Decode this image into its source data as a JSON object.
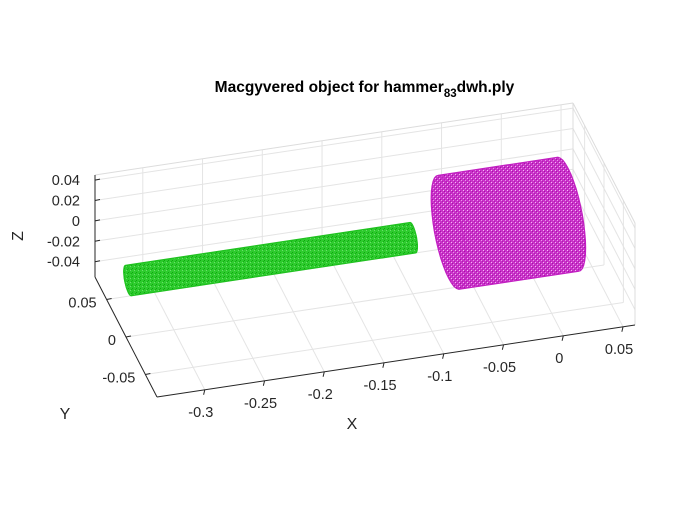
{
  "chart_data": {
    "type": "scatter3d",
    "title": {
      "prefix": "Macgyvered object for hammer",
      "subscript": "83",
      "suffix": "dwh.ply"
    },
    "xlabel": "X",
    "ylabel": "Y",
    "zlabel": "Z",
    "x_ticks": [
      "-0.3",
      "-0.25",
      "-0.2",
      "-0.15",
      "-0.1",
      "-0.05",
      "0",
      "0.05"
    ],
    "y_ticks": [
      "-0.05",
      "0",
      "0.05"
    ],
    "z_ticks": [
      "-0.04",
      "-0.02",
      "0",
      "0.02",
      "0.04"
    ],
    "xlim": [
      -0.34,
      0.06
    ],
    "ylim": [
      -0.08,
      0.08
    ],
    "zlim": [
      -0.055,
      0.045
    ],
    "grid": true,
    "series": [
      {
        "part": "handle",
        "shape": "cylinder",
        "color": "#1fc21f",
        "x_range": [
          -0.338,
          -0.1
        ],
        "radius": 0.012
      },
      {
        "part": "head",
        "shape": "cylinder",
        "color": "#c21fc2",
        "x_range": [
          -0.07,
          0.03
        ],
        "radius": 0.045
      }
    ]
  }
}
